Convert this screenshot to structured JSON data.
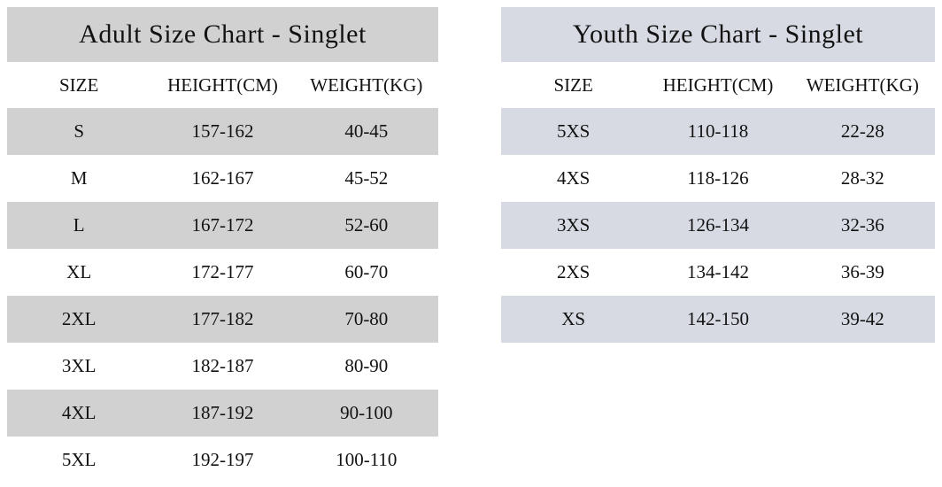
{
  "chart_data": [
    {
      "type": "table",
      "title": "Adult Size Chart - Singlet",
      "columns": [
        "SIZE",
        "HEIGHT(CM)",
        "WEIGHT(KG)"
      ],
      "stripe_color": "#d1d1d1",
      "rows": [
        [
          "S",
          "157-162",
          "40-45"
        ],
        [
          "M",
          "162-167",
          "45-52"
        ],
        [
          "L",
          "167-172",
          "52-60"
        ],
        [
          "XL",
          "172-177",
          "60-70"
        ],
        [
          "2XL",
          "177-182",
          "70-80"
        ],
        [
          "3XL",
          "182-187",
          "80-90"
        ],
        [
          "4XL",
          "187-192",
          "90-100"
        ],
        [
          "5XL",
          "192-197",
          "100-110"
        ]
      ]
    },
    {
      "type": "table",
      "title": "Youth Size Chart - Singlet",
      "columns": [
        "SIZE",
        "HEIGHT(CM)",
        "WEIGHT(KG)"
      ],
      "stripe_color": "#d7dae2",
      "rows": [
        [
          "5XS",
          "110-118",
          "22-28"
        ],
        [
          "4XS",
          "118-126",
          "28-32"
        ],
        [
          "3XS",
          "126-134",
          "32-36"
        ],
        [
          "2XS",
          "134-142",
          "36-39"
        ],
        [
          "XS",
          "142-150",
          "39-42"
        ]
      ]
    }
  ]
}
